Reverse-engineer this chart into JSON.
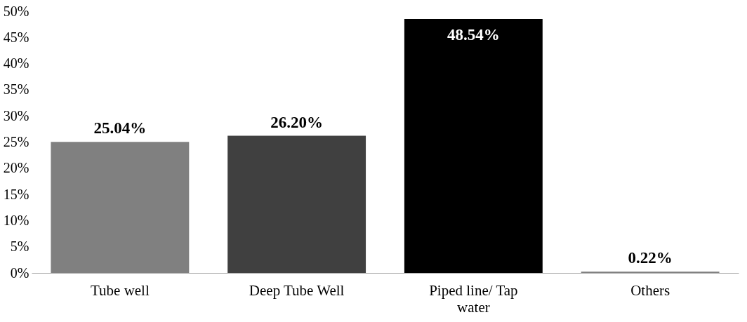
{
  "chart_data": {
    "type": "bar",
    "categories": [
      "Tube well",
      "Deep Tube Well",
      "Piped line/ Tap water",
      "Others"
    ],
    "values": [
      25.04,
      26.2,
      48.54,
      0.22
    ],
    "colors": [
      "#808080",
      "#404040",
      "#000000",
      "#7f7f7f"
    ],
    "value_labels": [
      "25.04%",
      "26.20%",
      "48.54%",
      "0.22%"
    ],
    "ylim": [
      0,
      50
    ],
    "yticks": [
      {
        "value": 0,
        "label": "0%"
      },
      {
        "value": 5,
        "label": "5%"
      },
      {
        "value": 10,
        "label": "10%"
      },
      {
        "value": 15,
        "label": "15%"
      },
      {
        "value": 20,
        "label": "20%"
      },
      {
        "value": 25,
        "label": "25%"
      },
      {
        "value": 30,
        "label": "30%"
      },
      {
        "value": 35,
        "label": "35%"
      },
      {
        "value": 40,
        "label": "40%"
      },
      {
        "value": 45,
        "label": "45%"
      },
      {
        "value": 50,
        "label": "50%"
      }
    ],
    "grid": false
  }
}
